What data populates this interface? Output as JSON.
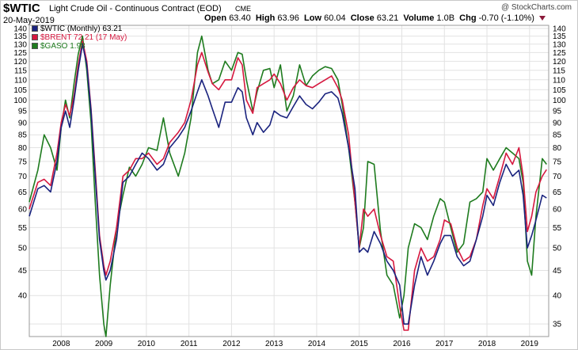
{
  "header": {
    "symbol": "$WTIC",
    "description": "Light Crude Oil - Continuous Contract (EOD)",
    "exchange": "CME",
    "brand": "@ StockCharts.com",
    "date": "20-May-2019",
    "open_label": "Open",
    "open": "63.40",
    "high_label": "High",
    "high": "63.96",
    "low_label": "Low",
    "low": "60.04",
    "close_label": "Close",
    "close": "63.21",
    "volume_label": "Volume",
    "volume": "1.0B",
    "chg_label": "Chg",
    "chg": "-0.70 (-1.10%)"
  },
  "legend": [
    {
      "label": "$WTIC (Monthly) 63.21",
      "color": "#1a237e"
    },
    {
      "label": "$BRENT 72.21 (17 May)",
      "color": "#d6183f"
    },
    {
      "label": "$GASO 1.98",
      "color": "#1e7b1e"
    }
  ],
  "chart_data": {
    "type": "line",
    "y_scale": "log",
    "ylim": [
      33,
      142
    ],
    "xlim": [
      2007.25,
      2019.45
    ],
    "y_ticks": [
      35,
      40,
      45,
      50,
      55,
      60,
      65,
      70,
      75,
      80,
      85,
      90,
      95,
      100,
      105,
      110,
      115,
      120,
      125,
      130,
      135,
      140
    ],
    "y_ticks_left": [
      40,
      45,
      50,
      55,
      60,
      65,
      70,
      75,
      80,
      85,
      90,
      95,
      100,
      105,
      110,
      115,
      120,
      125,
      130,
      135,
      140
    ],
    "y_ticks_right": [
      35,
      40,
      45,
      50,
      55,
      60,
      65,
      70,
      75,
      80,
      85,
      90,
      95,
      100,
      105,
      110,
      115,
      120,
      125,
      130,
      135,
      140
    ],
    "x_ticks": [
      {
        "label": "2008",
        "x": 2008.0
      },
      {
        "label": "2009",
        "x": 2009.0
      },
      {
        "label": "2010",
        "x": 2010.0
      },
      {
        "label": "2011",
        "x": 2011.0
      },
      {
        "label": "2012",
        "x": 2012.0
      },
      {
        "label": "2013",
        "x": 2013.0
      },
      {
        "label": "2014",
        "x": 2014.0
      },
      {
        "label": "2015",
        "x": 2015.0
      },
      {
        "label": "2016",
        "x": 2016.0
      },
      {
        "label": "2017",
        "x": 2017.0
      },
      {
        "label": "2018",
        "x": 2018.0
      },
      {
        "label": "2019",
        "x": 2019.0
      }
    ],
    "grid": true,
    "legend_position": "top-left",
    "series": [
      {
        "name": "$WTIC",
        "color": "#1a237e",
        "x": [
          2007.25,
          2007.45,
          2007.6,
          2007.75,
          2007.9,
          2008.0,
          2008.1,
          2008.2,
          2008.3,
          2008.4,
          2008.5,
          2008.6,
          2008.7,
          2008.8,
          2008.9,
          2009.0,
          2009.05,
          2009.15,
          2009.3,
          2009.45,
          2009.6,
          2009.75,
          2009.9,
          2010.05,
          2010.25,
          2010.4,
          2010.55,
          2010.75,
          2010.9,
          2011.05,
          2011.2,
          2011.3,
          2011.45,
          2011.55,
          2011.7,
          2011.85,
          2012.0,
          2012.15,
          2012.25,
          2012.35,
          2012.5,
          2012.6,
          2012.75,
          2012.9,
          2013.0,
          2013.15,
          2013.3,
          2013.45,
          2013.6,
          2013.75,
          2013.9,
          2014.05,
          2014.2,
          2014.35,
          2014.5,
          2014.6,
          2014.75,
          2014.9,
          2015.0,
          2015.1,
          2015.2,
          2015.35,
          2015.5,
          2015.65,
          2015.8,
          2015.95,
          2016.05,
          2016.15,
          2016.3,
          2016.45,
          2016.6,
          2016.75,
          2016.9,
          2017.0,
          2017.15,
          2017.3,
          2017.45,
          2017.6,
          2017.75,
          2017.9,
          2018.0,
          2018.15,
          2018.3,
          2018.45,
          2018.6,
          2018.75,
          2018.85,
          2018.95,
          2019.05,
          2019.15,
          2019.3,
          2019.4
        ],
        "y": [
          58,
          66,
          67,
          65,
          75,
          88,
          95,
          88,
          100,
          115,
          130,
          118,
          95,
          70,
          52,
          45,
          43,
          45,
          52,
          68,
          70,
          74,
          78,
          76,
          72,
          74,
          80,
          84,
          88,
          95,
          104,
          110,
          102,
          96,
          88,
          99,
          99,
          106,
          104,
          92,
          85,
          90,
          86,
          89,
          95,
          93,
          92,
          97,
          102,
          98,
          96,
          99,
          103,
          104,
          101,
          94,
          80,
          66,
          49,
          50,
          49,
          54,
          51,
          47,
          45,
          42,
          35,
          35,
          42,
          48,
          44,
          47,
          51,
          53,
          53,
          48,
          46,
          47,
          52,
          58,
          64,
          61,
          68,
          74,
          70,
          72,
          64,
          50,
          53,
          57,
          64,
          63.2
        ]
      },
      {
        "name": "$BRENT",
        "color": "#d6183f",
        "x": [
          2007.25,
          2007.45,
          2007.6,
          2007.75,
          2007.9,
          2008.0,
          2008.1,
          2008.2,
          2008.3,
          2008.4,
          2008.5,
          2008.6,
          2008.7,
          2008.8,
          2008.9,
          2009.0,
          2009.05,
          2009.15,
          2009.3,
          2009.45,
          2009.6,
          2009.75,
          2009.9,
          2010.05,
          2010.25,
          2010.4,
          2010.55,
          2010.75,
          2010.9,
          2011.05,
          2011.2,
          2011.3,
          2011.45,
          2011.55,
          2011.7,
          2011.85,
          2012.0,
          2012.15,
          2012.25,
          2012.35,
          2012.5,
          2012.6,
          2012.75,
          2012.9,
          2013.0,
          2013.15,
          2013.3,
          2013.45,
          2013.6,
          2013.75,
          2013.9,
          2014.05,
          2014.2,
          2014.35,
          2014.5,
          2014.6,
          2014.75,
          2014.9,
          2015.0,
          2015.1,
          2015.2,
          2015.35,
          2015.5,
          2015.65,
          2015.8,
          2015.95,
          2016.05,
          2016.15,
          2016.3,
          2016.45,
          2016.6,
          2016.75,
          2016.9,
          2017.0,
          2017.15,
          2017.3,
          2017.45,
          2017.6,
          2017.75,
          2017.9,
          2018.0,
          2018.15,
          2018.3,
          2018.45,
          2018.6,
          2018.75,
          2018.85,
          2018.95,
          2019.05,
          2019.15,
          2019.3,
          2019.4
        ],
        "y": [
          60,
          68,
          69,
          67,
          78,
          90,
          98,
          93,
          102,
          118,
          132,
          120,
          96,
          72,
          53,
          46,
          44,
          47,
          55,
          70,
          72,
          76,
          76,
          78,
          74,
          76,
          82,
          86,
          90,
          100,
          118,
          125,
          114,
          108,
          105,
          110,
          110,
          122,
          118,
          100,
          94,
          106,
          108,
          110,
          113,
          108,
          100,
          106,
          110,
          107,
          106,
          108,
          110,
          112,
          106,
          100,
          85,
          62,
          50,
          60,
          58,
          60,
          53,
          48,
          47,
          38,
          34,
          34,
          45,
          50,
          47,
          48,
          52,
          57,
          56,
          50,
          47,
          48,
          52,
          61,
          66,
          63,
          70,
          78,
          74,
          80,
          70,
          54,
          58,
          65,
          70,
          72.2
        ]
      },
      {
        "name": "$GASO",
        "color": "#1e7b1e",
        "x": [
          2007.25,
          2007.45,
          2007.6,
          2007.75,
          2007.9,
          2008.0,
          2008.1,
          2008.2,
          2008.3,
          2008.4,
          2008.5,
          2008.6,
          2008.7,
          2008.8,
          2008.9,
          2009.0,
          2009.05,
          2009.15,
          2009.3,
          2009.45,
          2009.6,
          2009.75,
          2009.9,
          2010.05,
          2010.25,
          2010.4,
          2010.55,
          2010.75,
          2010.9,
          2011.05,
          2011.2,
          2011.3,
          2011.45,
          2011.55,
          2011.7,
          2011.85,
          2012.0,
          2012.15,
          2012.25,
          2012.35,
          2012.5,
          2012.6,
          2012.75,
          2012.9,
          2013.0,
          2013.15,
          2013.3,
          2013.45,
          2013.6,
          2013.75,
          2013.9,
          2014.05,
          2014.2,
          2014.35,
          2014.5,
          2014.6,
          2014.75,
          2014.9,
          2015.0,
          2015.1,
          2015.2,
          2015.35,
          2015.5,
          2015.65,
          2015.8,
          2015.95,
          2016.05,
          2016.15,
          2016.3,
          2016.45,
          2016.6,
          2016.75,
          2016.9,
          2017.0,
          2017.15,
          2017.3,
          2017.45,
          2017.6,
          2017.75,
          2017.9,
          2018.0,
          2018.15,
          2018.3,
          2018.45,
          2018.6,
          2018.75,
          2018.85,
          2018.95,
          2019.05,
          2019.15,
          2019.3,
          2019.4
        ],
        "y": [
          62,
          72,
          85,
          80,
          72,
          88,
          100,
          92,
          108,
          124,
          135,
          115,
          90,
          62,
          44,
          35,
          33,
          42,
          55,
          64,
          73,
          70,
          74,
          80,
          79,
          92,
          78,
          70,
          78,
          92,
          125,
          135,
          115,
          108,
          110,
          120,
          115,
          125,
          124,
          110,
          95,
          104,
          115,
          116,
          106,
          118,
          95,
          102,
          118,
          107,
          112,
          115,
          117,
          116,
          110,
          98,
          80,
          62,
          50,
          55,
          75,
          74,
          54,
          44,
          42,
          36,
          40,
          50,
          56,
          55,
          52,
          58,
          63,
          62,
          55,
          49,
          51,
          62,
          63,
          65,
          76,
          72,
          76,
          80,
          78,
          76,
          68,
          47,
          44,
          58,
          76,
          74
        ]
      }
    ]
  }
}
